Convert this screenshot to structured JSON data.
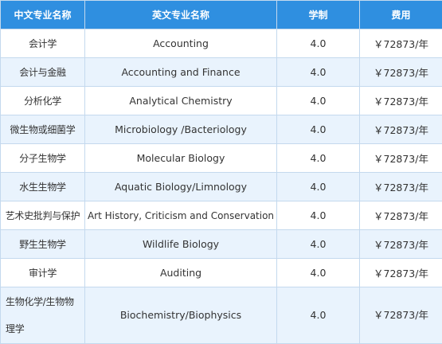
{
  "table": {
    "headers": [
      "中文专业名称",
      "英文专业名称",
      "学制",
      "费用"
    ],
    "rows": [
      {
        "cn": "会计学",
        "en": "Accounting",
        "years": "4.0",
        "fee": "￥72873/年"
      },
      {
        "cn": "会计与金融",
        "en": "Accounting and Finance",
        "years": "4.0",
        "fee": "￥72873/年"
      },
      {
        "cn": "分析化学",
        "en": "Analytical Chemistry",
        "years": "4.0",
        "fee": "￥72873/年"
      },
      {
        "cn": "微生物或细菌学",
        "en": "Microbiology /Bacteriology",
        "years": "4.0",
        "fee": "￥72873/年"
      },
      {
        "cn": "分子生物学",
        "en": "Molecular Biology",
        "years": "4.0",
        "fee": "￥72873/年"
      },
      {
        "cn": "水生生物学",
        "en": "Aquatic Biology/Limnology",
        "years": "4.0",
        "fee": "￥72873/年"
      },
      {
        "cn": "艺术史批判与保护",
        "en": "Art History, Criticism and Conservation",
        "years": "4.0",
        "fee": "￥72873/年"
      },
      {
        "cn": "野生生物学",
        "en": "Wildlife Biology",
        "years": "4.0",
        "fee": "￥72873/年"
      },
      {
        "cn": "审计学",
        "en": "Auditing",
        "years": "4.0",
        "fee": "￥72873/年"
      },
      {
        "cn": "生物化学/生物物理学",
        "en": "Biochemistry/Biophysics",
        "years": "4.0",
        "fee": "￥72873/年"
      }
    ]
  }
}
